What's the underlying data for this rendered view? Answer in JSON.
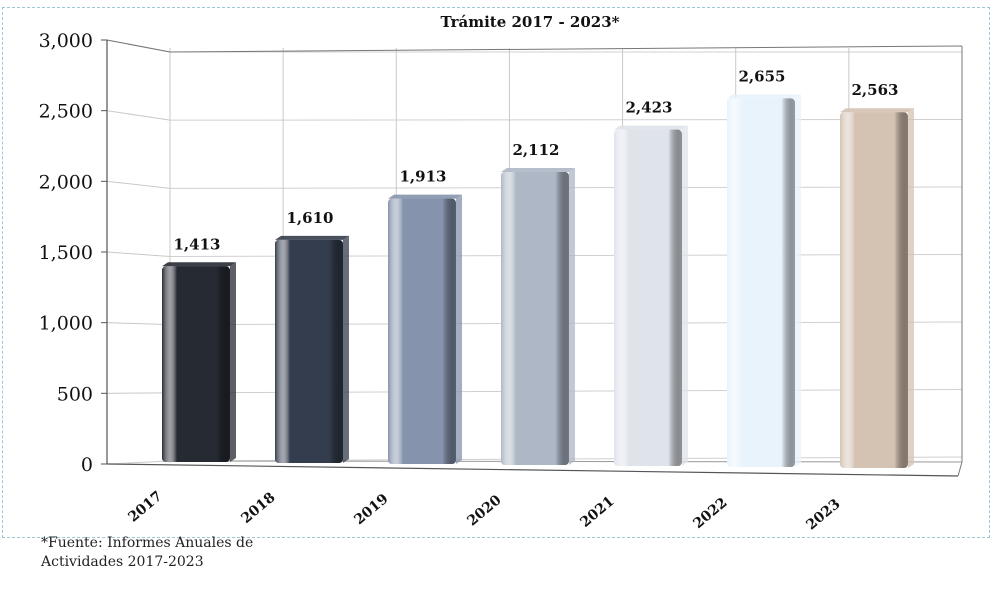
{
  "chart_data": {
    "type": "bar",
    "title": "Trámite 2017 -  2023*",
    "xlabel": "",
    "ylabel": "",
    "categories": [
      "2017",
      "2018",
      "2019",
      "2020",
      "2021",
      "2022",
      "2023"
    ],
    "values": [
      1413,
      1610,
      1913,
      2112,
      2423,
      2655,
      2563
    ],
    "value_labels": [
      "1,413",
      "1,610",
      "1,913",
      "2,112",
      "2,423",
      "2,655",
      "2,563"
    ],
    "ylim": [
      0,
      3000
    ],
    "yticks": [
      0,
      500,
      1000,
      1500,
      2000,
      2500,
      3000
    ],
    "ytick_labels": [
      "0",
      "500",
      "1,000",
      "1,500",
      "2,000",
      "2,500",
      "3,000"
    ],
    "grid": true,
    "legend": "none",
    "bar_colors": [
      "#262b33",
      "#343d4d",
      "#8593ac",
      "#aeb7c6",
      "#dfe3ea",
      "#e8f3fc",
      "#d4c2b3"
    ]
  },
  "source_note": {
    "line1": "*Fuente: Informes Anuales de",
    "line2": "Actividades 2017-2023"
  }
}
